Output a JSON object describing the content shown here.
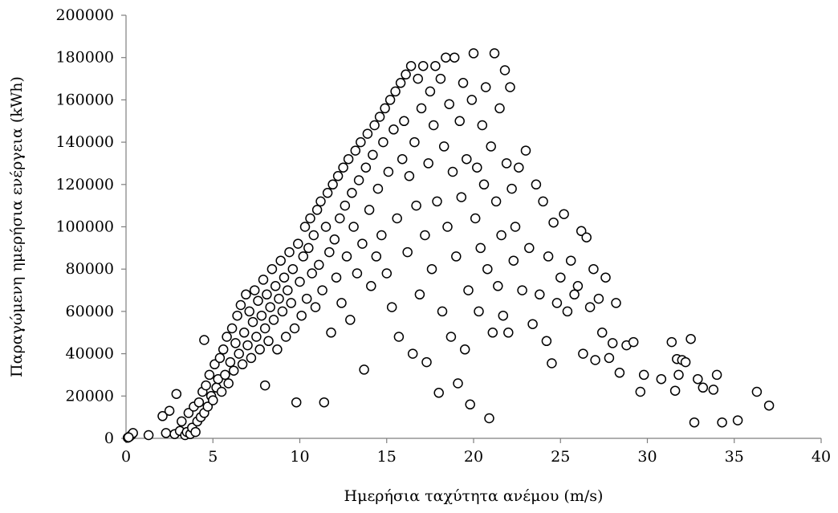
{
  "chart_data": {
    "type": "scatter",
    "title": "",
    "xlabel": "Ημερήσια ταχύτητα ανέμου (m/s)",
    "ylabel": "Παραγώμενη ημερήσια ενέργεια (kWh)",
    "xlim": [
      0,
      40
    ],
    "ylim": [
      0,
      200000
    ],
    "x_ticks": [
      0,
      5,
      10,
      15,
      20,
      25,
      30,
      35,
      40
    ],
    "y_ticks": [
      0,
      20000,
      40000,
      60000,
      80000,
      100000,
      120000,
      140000,
      160000,
      180000,
      200000
    ],
    "grid": false,
    "legend": "none",
    "marker": "hollow-circle",
    "points": [
      [
        0.1,
        300
      ],
      [
        0.2,
        800
      ],
      [
        0.3,
        1500
      ],
      [
        0.4,
        2500
      ],
      [
        0.15,
        500
      ],
      [
        1.3,
        1500
      ],
      [
        2.1,
        10500
      ],
      [
        2.3,
        2500
      ],
      [
        2.5,
        13000
      ],
      [
        2.8,
        2000
      ],
      [
        2.9,
        21000
      ],
      [
        3.1,
        3500
      ],
      [
        3.2,
        8000
      ],
      [
        3.4,
        1500
      ],
      [
        3.5,
        3000
      ],
      [
        3.6,
        12000
      ],
      [
        3.7,
        2000
      ],
      [
        3.8,
        5000
      ],
      [
        3.9,
        15000
      ],
      [
        4.0,
        3000
      ],
      [
        4.1,
        8000
      ],
      [
        4.2,
        17000
      ],
      [
        4.3,
        10000
      ],
      [
        4.4,
        22000
      ],
      [
        4.5,
        12000
      ],
      [
        4.5,
        46500
      ],
      [
        4.6,
        25000
      ],
      [
        4.7,
        15000
      ],
      [
        4.8,
        30000
      ],
      [
        4.9,
        20000
      ],
      [
        5.0,
        18000
      ],
      [
        5.1,
        35000
      ],
      [
        5.2,
        24000
      ],
      [
        5.3,
        28000
      ],
      [
        5.4,
        38000
      ],
      [
        5.5,
        22000
      ],
      [
        5.6,
        42000
      ],
      [
        5.7,
        30000
      ],
      [
        5.8,
        48000
      ],
      [
        5.9,
        26000
      ],
      [
        6.0,
        36000
      ],
      [
        6.1,
        52000
      ],
      [
        6.2,
        32000
      ],
      [
        6.3,
        45000
      ],
      [
        6.4,
        58000
      ],
      [
        6.5,
        40000
      ],
      [
        6.6,
        63000
      ],
      [
        6.7,
        35000
      ],
      [
        6.8,
        50000
      ],
      [
        6.9,
        68000
      ],
      [
        7.0,
        44000
      ],
      [
        7.1,
        60000
      ],
      [
        7.2,
        38000
      ],
      [
        7.3,
        55000
      ],
      [
        7.4,
        70000
      ],
      [
        7.5,
        48000
      ],
      [
        7.6,
        65000
      ],
      [
        7.7,
        42000
      ],
      [
        7.8,
        58000
      ],
      [
        7.9,
        75000
      ],
      [
        8.0,
        52000
      ],
      [
        8.0,
        25000
      ],
      [
        8.1,
        68000
      ],
      [
        8.2,
        46000
      ],
      [
        8.3,
        62000
      ],
      [
        8.4,
        80000
      ],
      [
        8.5,
        56000
      ],
      [
        8.6,
        72000
      ],
      [
        8.7,
        42000
      ],
      [
        8.8,
        66000
      ],
      [
        8.9,
        84000
      ],
      [
        9.0,
        60000
      ],
      [
        9.1,
        76000
      ],
      [
        9.2,
        48000
      ],
      [
        9.3,
        70000
      ],
      [
        9.4,
        88000
      ],
      [
        9.5,
        64000
      ],
      [
        9.6,
        80000
      ],
      [
        9.7,
        52000
      ],
      [
        9.8,
        17000
      ],
      [
        9.9,
        92000
      ],
      [
        10.0,
        74000
      ],
      [
        10.1,
        58000
      ],
      [
        10.2,
        86000
      ],
      [
        10.3,
        100000
      ],
      [
        10.4,
        66000
      ],
      [
        10.5,
        90000
      ],
      [
        10.6,
        104000
      ],
      [
        10.7,
        78000
      ],
      [
        10.8,
        96000
      ],
      [
        10.9,
        62000
      ],
      [
        11.0,
        108000
      ],
      [
        11.1,
        82000
      ],
      [
        11.2,
        112000
      ],
      [
        11.3,
        70000
      ],
      [
        11.4,
        17000
      ],
      [
        11.5,
        100000
      ],
      [
        11.6,
        116000
      ],
      [
        11.7,
        88000
      ],
      [
        11.8,
        50000
      ],
      [
        11.9,
        120000
      ],
      [
        12.0,
        94000
      ],
      [
        12.1,
        76000
      ],
      [
        12.2,
        124000
      ],
      [
        12.3,
        104000
      ],
      [
        12.4,
        64000
      ],
      [
        12.5,
        128000
      ],
      [
        12.6,
        110000
      ],
      [
        12.7,
        86000
      ],
      [
        12.8,
        132000
      ],
      [
        12.9,
        56000
      ],
      [
        13.0,
        116000
      ],
      [
        13.1,
        100000
      ],
      [
        13.2,
        136000
      ],
      [
        13.3,
        78000
      ],
      [
        13.4,
        122000
      ],
      [
        13.5,
        140000
      ],
      [
        13.6,
        92000
      ],
      [
        13.7,
        32500
      ],
      [
        13.8,
        128000
      ],
      [
        13.9,
        144000
      ],
      [
        14.0,
        108000
      ],
      [
        14.1,
        72000
      ],
      [
        14.2,
        134000
      ],
      [
        14.3,
        148000
      ],
      [
        14.4,
        86000
      ],
      [
        14.5,
        118000
      ],
      [
        14.6,
        152000
      ],
      [
        14.7,
        96000
      ],
      [
        14.8,
        140000
      ],
      [
        14.9,
        156000
      ],
      [
        15.0,
        78000
      ],
      [
        15.1,
        126000
      ],
      [
        15.2,
        160000
      ],
      [
        15.3,
        62000
      ],
      [
        15.4,
        146000
      ],
      [
        15.5,
        164000
      ],
      [
        15.6,
        104000
      ],
      [
        15.7,
        48000
      ],
      [
        15.8,
        168000
      ],
      [
        15.9,
        132000
      ],
      [
        16.0,
        150000
      ],
      [
        16.1,
        172000
      ],
      [
        16.2,
        88000
      ],
      [
        16.3,
        124000
      ],
      [
        16.4,
        176000
      ],
      [
        16.5,
        40000
      ],
      [
        16.6,
        140000
      ],
      [
        16.7,
        110000
      ],
      [
        16.8,
        170000
      ],
      [
        16.9,
        68000
      ],
      [
        17.0,
        156000
      ],
      [
        17.1,
        176000
      ],
      [
        17.2,
        96000
      ],
      [
        17.3,
        36000
      ],
      [
        17.4,
        130000
      ],
      [
        17.5,
        164000
      ],
      [
        17.6,
        80000
      ],
      [
        17.7,
        148000
      ],
      [
        17.8,
        176000
      ],
      [
        17.9,
        112000
      ],
      [
        18.0,
        21500
      ],
      [
        18.1,
        170000
      ],
      [
        18.2,
        60000
      ],
      [
        18.3,
        138000
      ],
      [
        18.4,
        180000
      ],
      [
        18.5,
        100000
      ],
      [
        18.6,
        158000
      ],
      [
        18.7,
        48000
      ],
      [
        18.8,
        126000
      ],
      [
        18.9,
        180000
      ],
      [
        19.0,
        86000
      ],
      [
        19.1,
        26000
      ],
      [
        19.2,
        150000
      ],
      [
        19.3,
        114000
      ],
      [
        19.4,
        168000
      ],
      [
        19.5,
        42000
      ],
      [
        19.6,
        132000
      ],
      [
        19.7,
        70000
      ],
      [
        19.8,
        16000
      ],
      [
        19.9,
        160000
      ],
      [
        20.0,
        182000
      ],
      [
        20.1,
        104000
      ],
      [
        20.2,
        128000
      ],
      [
        20.3,
        60000
      ],
      [
        20.4,
        90000
      ],
      [
        20.5,
        148000
      ],
      [
        20.6,
        120000
      ],
      [
        20.7,
        166000
      ],
      [
        20.8,
        80000
      ],
      [
        20.9,
        9500
      ],
      [
        21.0,
        138000
      ],
      [
        21.1,
        50000
      ],
      [
        21.2,
        182000
      ],
      [
        21.3,
        112000
      ],
      [
        21.4,
        72000
      ],
      [
        21.5,
        156000
      ],
      [
        21.6,
        96000
      ],
      [
        21.7,
        58000
      ],
      [
        21.8,
        174000
      ],
      [
        21.9,
        130000
      ],
      [
        22.0,
        50000
      ],
      [
        22.1,
        166000
      ],
      [
        22.2,
        118000
      ],
      [
        22.3,
        84000
      ],
      [
        22.4,
        100000
      ],
      [
        22.6,
        128000
      ],
      [
        22.8,
        70000
      ],
      [
        23.0,
        136000
      ],
      [
        23.2,
        90000
      ],
      [
        23.4,
        54000
      ],
      [
        23.6,
        120000
      ],
      [
        23.8,
        68000
      ],
      [
        24.0,
        112000
      ],
      [
        24.2,
        46000
      ],
      [
        24.3,
        86000
      ],
      [
        24.5,
        35500
      ],
      [
        24.6,
        102000
      ],
      [
        24.8,
        64000
      ],
      [
        25.0,
        76000
      ],
      [
        25.2,
        106000
      ],
      [
        25.4,
        60000
      ],
      [
        25.6,
        84000
      ],
      [
        25.8,
        68000
      ],
      [
        26.0,
        72000
      ],
      [
        26.2,
        98000
      ],
      [
        26.3,
        40000
      ],
      [
        26.5,
        95000
      ],
      [
        26.7,
        62000
      ],
      [
        26.9,
        80000
      ],
      [
        27.0,
        37000
      ],
      [
        27.2,
        66000
      ],
      [
        27.4,
        50000
      ],
      [
        27.6,
        76000
      ],
      [
        27.8,
        38000
      ],
      [
        28.0,
        45000
      ],
      [
        28.2,
        64000
      ],
      [
        28.4,
        31000
      ],
      [
        28.8,
        44000
      ],
      [
        29.2,
        45500
      ],
      [
        29.6,
        22000
      ],
      [
        29.8,
        30000
      ],
      [
        30.8,
        28000
      ],
      [
        31.4,
        45500
      ],
      [
        31.6,
        22500
      ],
      [
        31.7,
        37500
      ],
      [
        31.8,
        30000
      ],
      [
        32.0,
        37000
      ],
      [
        32.2,
        36000
      ],
      [
        32.5,
        47000
      ],
      [
        32.7,
        7500
      ],
      [
        32.9,
        28000
      ],
      [
        33.2,
        24000
      ],
      [
        33.8,
        23000
      ],
      [
        34.0,
        30000
      ],
      [
        34.3,
        7500
      ],
      [
        35.2,
        8500
      ],
      [
        36.3,
        22000
      ],
      [
        37.0,
        15500
      ]
    ]
  }
}
